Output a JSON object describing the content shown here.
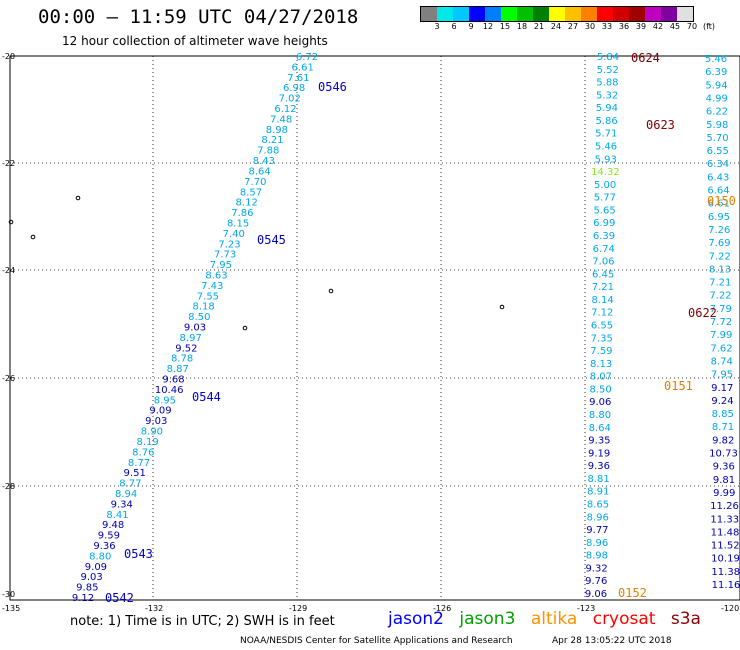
{
  "header": {
    "title": "00:00 – 11:59 UTC 04/27/2018",
    "subtitle": "12 hour collection of altimeter wave heights"
  },
  "legend": {
    "colors": [
      "#808080",
      "#00e8e8",
      "#00c8ff",
      "#0000ff",
      "#0080ff",
      "#00ff00",
      "#00c000",
      "#008000",
      "#ffff00",
      "#ffc000",
      "#ff8000",
      "#ff0000",
      "#d00000",
      "#a00000",
      "#c000c0",
      "#8000a0",
      "#e0e0e0"
    ],
    "labels": [
      "3",
      "6",
      "9",
      "12",
      "15",
      "18",
      "21",
      "24",
      "27",
      "30",
      "33",
      "36",
      "39",
      "42",
      "45",
      "70",
      "(ft)"
    ]
  },
  "axes": {
    "lat_labels": [
      "-20",
      "-22",
      "-24",
      "-26",
      "-28",
      "-30"
    ],
    "lon_labels": [
      "-135",
      "-132",
      "-129",
      "-126",
      "-123",
      "-120"
    ]
  },
  "tracks": {
    "west": [
      "6.72",
      "6.61",
      "7.61",
      "6.98",
      "7.02",
      "6.12",
      "7.48",
      "8.98",
      "8.21",
      "7.88",
      "8.43",
      "8.64",
      "7.70",
      "8.57",
      "8.12",
      "7.86",
      "8.15",
      "7.40",
      "7.23",
      "7.73",
      "7.95",
      "8.63",
      "7.43",
      "7.55",
      "8.18",
      "8.50",
      "9.03",
      "8.97",
      "9.52",
      "8.78",
      "8.87",
      "9.68",
      "10.46",
      "8.95",
      "9.09",
      "9.03",
      "8.90",
      "8.19",
      "8.76",
      "8.77",
      "9.51",
      "8.77",
      "8.94",
      "9.34",
      "8.41",
      "9.48",
      "9.59",
      "9.36",
      "8.80",
      "9.09",
      "9.03",
      "9.85",
      "9.12"
    ],
    "east_a": [
      "5.84",
      "5.52",
      "5.88",
      "5.32",
      "5.94",
      "5.86",
      "5.71",
      "5.46",
      "5.93",
      "14.32",
      "5.00",
      "5.77",
      "5.65",
      "6.99",
      "6.39",
      "6.74",
      "7.06",
      "6.45",
      "7.21",
      "8.14",
      "7.12",
      "6.55",
      "7.35",
      "7.59",
      "8.13",
      "8.07",
      "8.50",
      "9.06",
      "8.80",
      "8.64",
      "9.35",
      "9.19",
      "9.36",
      "8.81",
      "8.91",
      "8.65",
      "8.96",
      "9.77",
      "8.96",
      "8.98",
      "9.32",
      "9.76",
      "9.06"
    ],
    "east_b": [
      "5.46",
      "6.39",
      "5.94",
      "4.99",
      "6.22",
      "5.98",
      "5.70",
      "6.55",
      "6.34",
      "6.43",
      "6.64",
      "6.61",
      "6.95",
      "7.26",
      "7.69",
      "7.22",
      "8.13",
      "7.21",
      "7.22",
      "7.79",
      "7.72",
      "7.99",
      "7.62",
      "8.74",
      "7.95",
      "9.17",
      "9.24",
      "8.85",
      "8.71",
      "9.82",
      "10.73",
      "9.36",
      "9.81",
      "9.99",
      "11.26",
      "11.33",
      "11.48",
      "11.52",
      "10.19",
      "11.38",
      "11.16"
    ]
  },
  "passes": [
    {
      "label": "0546",
      "color": "#0000c8"
    },
    {
      "label": "0545",
      "color": "#0000c8"
    },
    {
      "label": "0544",
      "color": "#0000c8"
    },
    {
      "label": "0543",
      "color": "#0000c8"
    },
    {
      "label": "0542",
      "color": "#0000c8"
    },
    {
      "label": "0624",
      "color": "#800000"
    },
    {
      "label": "0623",
      "color": "#800000"
    },
    {
      "label": "0622",
      "color": "#800000"
    },
    {
      "label": "0150",
      "color": "#e08000"
    },
    {
      "label": "0151",
      "color": "#e08000"
    },
    {
      "label": "0152",
      "color": "#e08000"
    }
  ],
  "footer": {
    "note": "note: 1) Time is in UTC; 2) SWH is in feet",
    "sat_jason2": "jason2",
    "sat_jason3": "jason3",
    "sat_altika": "altika",
    "sat_cryosat": "cryosat",
    "sat_s3a": "s3a",
    "credit": "NOAA/NESDIS Center for Satellite Applications and Research",
    "stamp": "Apr 28 13:05:22 UTC 2018"
  }
}
